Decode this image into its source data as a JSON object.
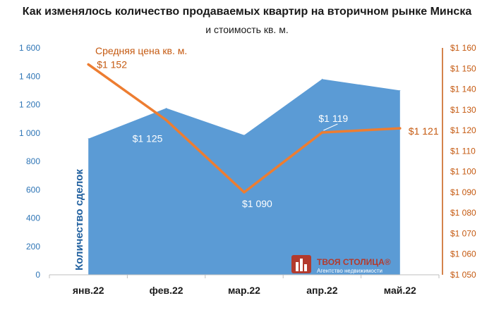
{
  "chart_data": {
    "type": "area+line",
    "title": "Как изменялось количество продаваемых квартир на вторичном рынке Минска",
    "subtitle": "и стоимость кв. м.",
    "categories": [
      "янв.22",
      "фев.22",
      "мар.22",
      "апр.22",
      "май.22"
    ],
    "area_series": {
      "name": "Количество сделок",
      "values": [
        960,
        1175,
        985,
        1380,
        1300
      ],
      "axis": "left",
      "ylim": [
        0,
        1600
      ],
      "ticks": [
        "0",
        "200",
        "400",
        "600",
        "800",
        "1 000",
        "1 200",
        "1 400",
        "1 600"
      ],
      "color": "#5b9bd5"
    },
    "line_series": {
      "name": "Средняя цена кв. м.",
      "values": [
        1152,
        1125,
        1090,
        1119,
        1121
      ],
      "labels": [
        "$1 152",
        "$1 125",
        "$1 090",
        "$1 119",
        "$1 121"
      ],
      "axis": "right",
      "ylim": [
        1050,
        1160
      ],
      "ticks": [
        "$1 050",
        "$1 060",
        "$1 070",
        "$1 080",
        "$1 090",
        "$1 100",
        "$1 110",
        "$1 120",
        "$1 130",
        "$1 140",
        "$1 150",
        "$1 160"
      ],
      "color": "#ed7d31"
    },
    "left_axis_color": "#2e75b6",
    "right_axis_color": "#c55a11",
    "grid": false
  },
  "logo": {
    "name": "ТВОЯ СТОЛИЦА®",
    "tagline": "Агентство недвижимости",
    "color": "#b33a2d"
  }
}
